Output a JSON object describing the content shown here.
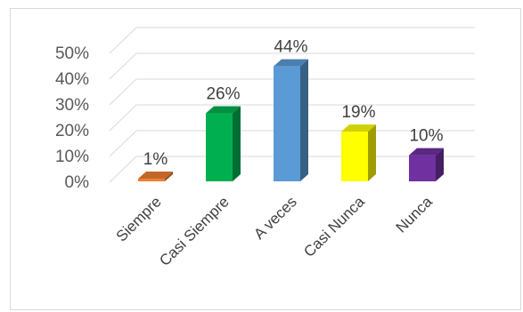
{
  "chart_data": {
    "type": "bar",
    "style": "3d-column",
    "title": "",
    "xlabel": "",
    "ylabel": "",
    "categories": [
      "Siempre",
      "Casi Siempre",
      "A veces",
      "Casi Nunca",
      "Nunca"
    ],
    "values": [
      1,
      26,
      44,
      19,
      10
    ],
    "value_labels": [
      "1%",
      "26%",
      "44%",
      "19%",
      "10%"
    ],
    "y_ticks": [
      "0%",
      "10%",
      "20%",
      "30%",
      "40%",
      "50%"
    ],
    "ylim": [
      0,
      50
    ],
    "grid": true,
    "legend": "none",
    "colors": [
      "#ed7d31",
      "#00b050",
      "#5b9bd5",
      "#ffff00",
      "#7030a0"
    ]
  }
}
